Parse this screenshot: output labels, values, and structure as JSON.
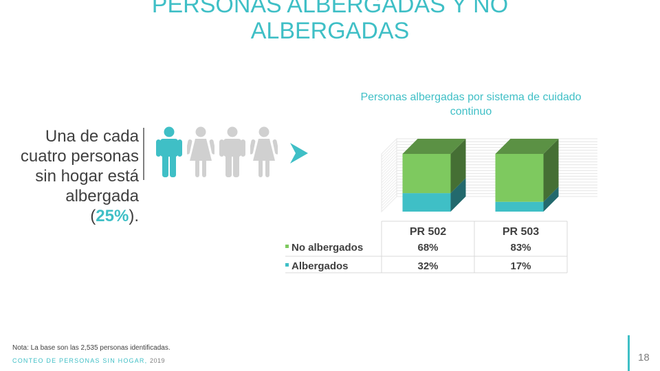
{
  "slide": {
    "title": "PERSONAS ALBERGADAS Y NO ALBERGADAS",
    "statement": "Una de cada cuatro personas sin hogar está albergada",
    "statement_pct": "25%",
    "statement_open": "(",
    "statement_close": ").",
    "note": "Nota: La base son las 2,535 personas identificadas.",
    "footer_label": "CONTEO DE PERSONAS SIN HOGAR,",
    "footer_year": "2019",
    "page_number": "18"
  },
  "icons": [
    "person-male-icon",
    "person-female-icon",
    "person-male-icon",
    "person-female-icon",
    "chevron-right-icon"
  ],
  "colors": {
    "accent": "#3fbfc6",
    "no_albergados": "#7ec95f",
    "albergados": "#3fbfc6",
    "person_highlight": "#3fbfc6",
    "person_muted": "#d0d0d0"
  },
  "chart_data": {
    "type": "bar",
    "stacked": true,
    "percent_stacked": true,
    "three_d": true,
    "title": "Personas albergadas por sistema de cuidado continuo",
    "categories": [
      "PR 502",
      "PR 503"
    ],
    "series": [
      {
        "name": "No albergados",
        "values": [
          68,
          83
        ],
        "labels": [
          "68%",
          "83%"
        ],
        "color": "#7ec95f"
      },
      {
        "name": "Albergados",
        "values": [
          32,
          17
        ],
        "labels": [
          "32%",
          "17%"
        ],
        "color": "#3fbfc6"
      }
    ],
    "ylim": [
      0,
      100
    ],
    "grid": true,
    "data_table": true
  }
}
